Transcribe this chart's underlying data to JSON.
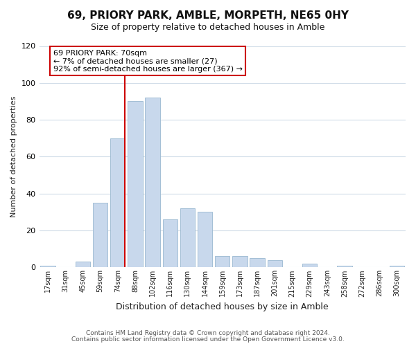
{
  "title": "69, PRIORY PARK, AMBLE, MORPETH, NE65 0HY",
  "subtitle": "Size of property relative to detached houses in Amble",
  "xlabel": "Distribution of detached houses by size in Amble",
  "ylabel": "Number of detached properties",
  "bar_color": "#c8d8ec",
  "bar_edge_color": "#9ab8d0",
  "grid_color": "#d0dce8",
  "background_color": "#ffffff",
  "fig_background_color": "#ffffff",
  "marker_line_color": "#cc0000",
  "annotation_line1": "69 PRIORY PARK: 70sqm",
  "annotation_line2": "← 7% of detached houses are smaller (27)",
  "annotation_line3": "92% of semi-detached houses are larger (367) →",
  "annotation_box_color": "#ffffff",
  "annotation_border_color": "#cc0000",
  "categories": [
    "17sqm",
    "31sqm",
    "45sqm",
    "59sqm",
    "74sqm",
    "88sqm",
    "102sqm",
    "116sqm",
    "130sqm",
    "144sqm",
    "159sqm",
    "173sqm",
    "187sqm",
    "201sqm",
    "215sqm",
    "229sqm",
    "243sqm",
    "258sqm",
    "272sqm",
    "286sqm",
    "300sqm"
  ],
  "values": [
    1,
    0,
    3,
    35,
    70,
    90,
    92,
    26,
    32,
    30,
    6,
    6,
    5,
    4,
    0,
    2,
    0,
    1,
    0,
    0,
    1
  ],
  "ylim": [
    0,
    120
  ],
  "yticks": [
    0,
    20,
    40,
    60,
    80,
    100,
    120
  ],
  "footer_line1": "Contains HM Land Registry data © Crown copyright and database right 2024.",
  "footer_line2": "Contains public sector information licensed under the Open Government Licence v3.0."
}
